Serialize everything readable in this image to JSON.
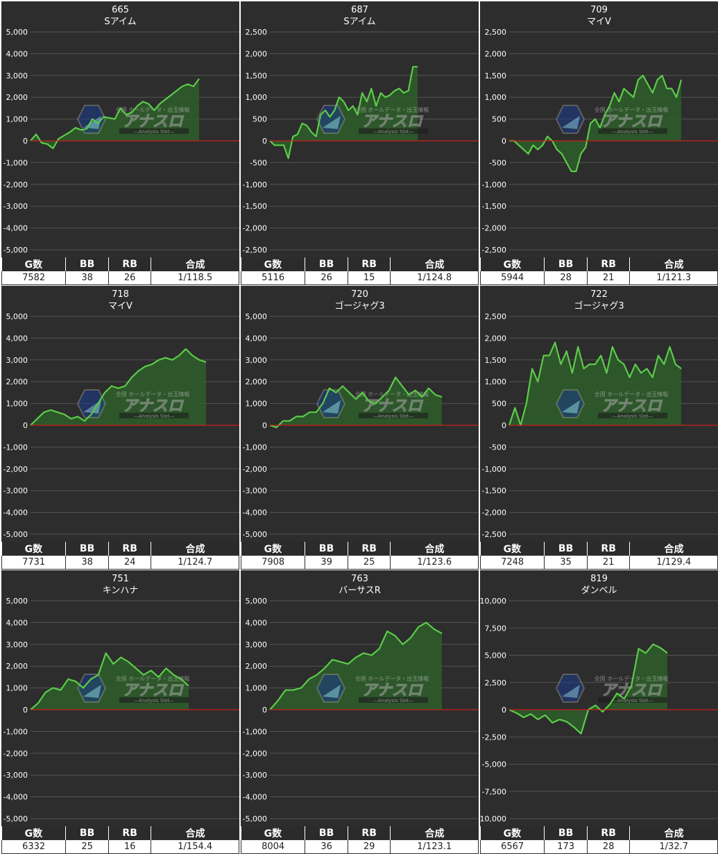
{
  "header_labels": {
    "g": "G数",
    "bb": "BB",
    "rb": "RB",
    "total": "合成"
  },
  "colors": {
    "background": "#2d2d2d",
    "line": "#5ccc4a",
    "fill": "#2e5e2a",
    "zero_line": "#cc1f1f",
    "grid": "#555555"
  },
  "watermark": {
    "main": "アナスロ",
    "sub": "—Analysis Slot—",
    "top": "全国 ホールデータ・出玉情報"
  },
  "chart_data": [
    {
      "type": "area",
      "title": "665",
      "subtitle": "Sアイム",
      "ylim": [
        -5000,
        5000
      ],
      "yticks": [
        5000,
        4000,
        3000,
        2000,
        1000,
        0,
        -1000,
        -2000,
        -3000,
        -4000,
        -5000
      ],
      "values": [
        0,
        300,
        -100,
        -150,
        -350,
        100,
        250,
        400,
        600,
        500,
        550,
        1000,
        800,
        1100,
        1050,
        1000,
        1500,
        1200,
        1300,
        1600,
        1800,
        1700,
        1400,
        1700,
        1900,
        2100,
        2300,
        2500,
        2600,
        2500,
        2850
      ],
      "stats": {
        "g": "7582",
        "bb": "38",
        "rb": "26",
        "total": "1/118.5"
      }
    },
    {
      "type": "area",
      "title": "687",
      "subtitle": "Sアイム",
      "ylim": [
        -2500,
        2500
      ],
      "yticks": [
        2500,
        2000,
        1500,
        1000,
        500,
        0,
        -500,
        -1000,
        -1500,
        -2000,
        -2500
      ],
      "values": [
        0,
        -100,
        -100,
        -100,
        -400,
        100,
        150,
        400,
        350,
        200,
        100,
        600,
        700,
        550,
        700,
        1000,
        900,
        700,
        800,
        600,
        1100,
        900,
        1200,
        800,
        1100,
        1000,
        1050,
        1150,
        1200,
        1100,
        1150,
        1700,
        1700
      ],
      "stats": {
        "g": "5116",
        "bb": "26",
        "rb": "15",
        "total": "1/124.8"
      }
    },
    {
      "type": "area",
      "title": "709",
      "subtitle": "マイV",
      "ylim": [
        -2500,
        2500
      ],
      "yticks": [
        2500,
        2000,
        1500,
        1000,
        500,
        0,
        -500,
        -1000,
        -1500,
        -2000,
        -2500
      ],
      "values": [
        0,
        0,
        -100,
        -200,
        -300,
        -100,
        -200,
        -100,
        100,
        0,
        -200,
        -300,
        -500,
        -700,
        -700,
        -300,
        -150,
        400,
        500,
        300,
        600,
        800,
        1100,
        900,
        1200,
        1100,
        1000,
        1400,
        1500,
        1300,
        1100,
        1400,
        1500,
        1200,
        1200,
        1000,
        1400
      ],
      "stats": {
        "g": "5944",
        "bb": "28",
        "rb": "21",
        "total": "1/121.3"
      }
    },
    {
      "type": "area",
      "title": "718",
      "subtitle": "マイV",
      "ylim": [
        -5000,
        5000
      ],
      "yticks": [
        5000,
        4000,
        3000,
        2000,
        1000,
        0,
        -1000,
        -2000,
        -3000,
        -4000,
        -5000
      ],
      "values": [
        0,
        300,
        600,
        700,
        600,
        500,
        300,
        400,
        200,
        500,
        1000,
        1500,
        1800,
        1700,
        1800,
        2200,
        2500,
        2700,
        2800,
        3000,
        3100,
        3000,
        3200,
        3500,
        3200,
        3000,
        2900
      ],
      "stats": {
        "g": "7731",
        "bb": "38",
        "rb": "24",
        "total": "1/124.7"
      }
    },
    {
      "type": "area",
      "title": "720",
      "subtitle": "ゴージャグ3",
      "ylim": [
        -5000,
        5000
      ],
      "yticks": [
        5000,
        4000,
        3000,
        2000,
        1000,
        0,
        -1000,
        -2000,
        -3000,
        -4000,
        -5000
      ],
      "values": [
        0,
        -100,
        200,
        200,
        400,
        400,
        600,
        600,
        1000,
        1700,
        1500,
        1800,
        1500,
        1200,
        1500,
        1100,
        1000,
        1300,
        1600,
        2200,
        1800,
        1400,
        1600,
        1300,
        1700,
        1400,
        1300
      ],
      "stats": {
        "g": "7908",
        "bb": "39",
        "rb": "25",
        "total": "1/123.6"
      }
    },
    {
      "type": "area",
      "title": "722",
      "subtitle": "ゴージャグ3",
      "ylim": [
        -2500,
        2500
      ],
      "yticks": [
        2500,
        2000,
        1500,
        1000,
        500,
        0,
        -500,
        -1000,
        -1500,
        -2000,
        -2500
      ],
      "values": [
        0,
        400,
        0,
        500,
        1300,
        1000,
        1600,
        1600,
        1900,
        1400,
        1700,
        1200,
        1800,
        1300,
        1400,
        1400,
        1600,
        1200,
        1800,
        1500,
        1400,
        1100,
        1400,
        1200,
        1300,
        1100,
        1600,
        1400,
        1800,
        1400,
        1300
      ],
      "stats": {
        "g": "7248",
        "bb": "35",
        "rb": "21",
        "total": "1/129.4"
      }
    },
    {
      "type": "area",
      "title": "751",
      "subtitle": "キンハナ",
      "ylim": [
        -5000,
        5000
      ],
      "yticks": [
        5000,
        4000,
        3000,
        2000,
        1000,
        0,
        -1000,
        -2000,
        -3000,
        -4000,
        -5000
      ],
      "values": [
        0,
        300,
        800,
        1000,
        900,
        1400,
        1300,
        1000,
        1400,
        1600,
        2600,
        2100,
        2400,
        2200,
        1900,
        1600,
        1800,
        1500,
        1900,
        1600,
        1400,
        1100
      ],
      "stats": {
        "g": "6332",
        "bb": "25",
        "rb": "16",
        "total": "1/154.4"
      }
    },
    {
      "type": "area",
      "title": "763",
      "subtitle": "バーサスR",
      "ylim": [
        -5000,
        5000
      ],
      "yticks": [
        5000,
        4000,
        3000,
        2000,
        1000,
        0,
        -1000,
        -2000,
        -3000,
        -4000,
        -5000
      ],
      "values": [
        0,
        400,
        900,
        900,
        1000,
        1400,
        1600,
        1900,
        2300,
        2200,
        2100,
        2400,
        2600,
        2500,
        2800,
        3600,
        3400,
        3000,
        3300,
        3800,
        4000,
        3700,
        3500
      ],
      "stats": {
        "g": "8004",
        "bb": "36",
        "rb": "29",
        "total": "1/123.1"
      }
    },
    {
      "type": "area",
      "title": "819",
      "subtitle": "ダンベル",
      "ylim": [
        -10000,
        10000
      ],
      "yticks": [
        10000,
        7500,
        5000,
        2500,
        0,
        -2500,
        -5000,
        -7500,
        -10000
      ],
      "values": [
        0,
        -300,
        -700,
        -400,
        -900,
        -500,
        -1200,
        -900,
        -1100,
        -1600,
        -2200,
        0,
        400,
        -200,
        500,
        1500,
        1000,
        2200,
        5600,
        5200,
        6000,
        5700,
        5200
      ],
      "stats": {
        "g": "6567",
        "bb": "173",
        "rb": "28",
        "total": "1/32.7"
      }
    }
  ]
}
